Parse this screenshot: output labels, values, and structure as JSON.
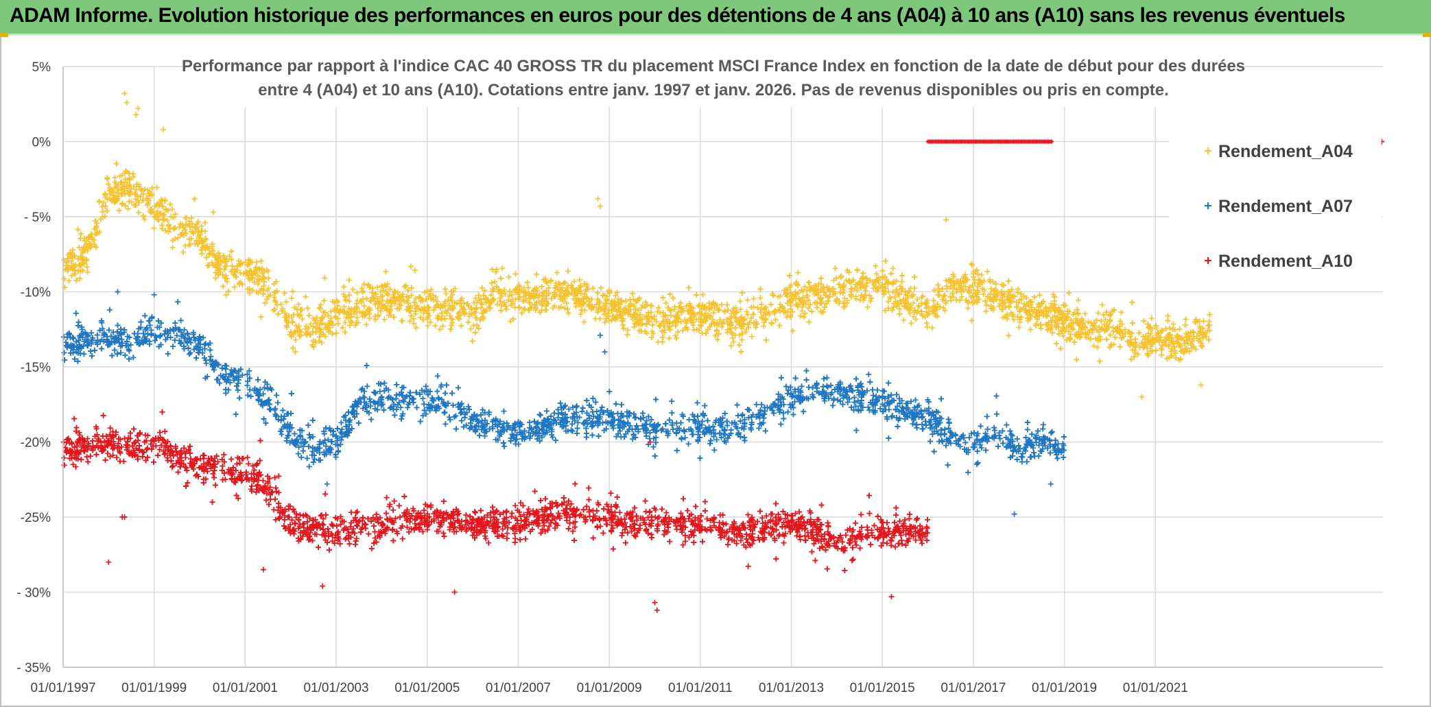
{
  "banner": {
    "title": "ADAM Informe. Evolution historique des performances en euros pour des détentions de 4 ans (A04) à 10 ans (A10) sans les revenus éventuels",
    "color": "#7ec87c"
  },
  "chart_data": {
    "type": "scatter",
    "title_lines": [
      "Performance par rapport à l'indice CAC 40 GROSS TR  du placement MSCI France Index en fonction de la date de début pour des durées",
      "entre 4 (A04) et 10 ans (A10). Cotations entre janv. 1997 et janv. 2026. Pas de revenus disponibles ou pris en compte."
    ],
    "xlabel": "",
    "ylabel": "",
    "x_range": [
      1997.0,
      2026.0
    ],
    "x_ticks": [
      {
        "year": 1997,
        "label": "01/01/1997"
      },
      {
        "year": 1999,
        "label": "01/01/1999"
      },
      {
        "year": 2001,
        "label": "01/01/2001"
      },
      {
        "year": 2003,
        "label": "01/01/2003"
      },
      {
        "year": 2005,
        "label": "01/01/2005"
      },
      {
        "year": 2007,
        "label": "01/01/2007"
      },
      {
        "year": 2009,
        "label": "01/01/2009"
      },
      {
        "year": 2011,
        "label": "01/01/2011"
      },
      {
        "year": 2013,
        "label": "01/01/2013"
      },
      {
        "year": 2015,
        "label": "01/01/2015"
      },
      {
        "year": 2017,
        "label": "01/01/2017"
      },
      {
        "year": 2019,
        "label": "01/01/2019"
      },
      {
        "year": 2021,
        "label": "01/01/2021"
      }
    ],
    "ylim": [
      -35,
      5
    ],
    "y_ticks": [
      {
        "value": 5,
        "label": "5%"
      },
      {
        "value": 0,
        "label": "0%"
      },
      {
        "value": -5,
        "label": "- 5%"
      },
      {
        "value": -10,
        "label": "-10%"
      },
      {
        "value": -15,
        "label": "-15%"
      },
      {
        "value": -20,
        "label": "-20%"
      },
      {
        "value": -25,
        "label": "-25%"
      },
      {
        "value": -30,
        "label": "- 30%"
      },
      {
        "value": -35,
        "label": "- 35%"
      }
    ],
    "grid": true,
    "legend_position": "top-right",
    "marker": "+",
    "series": [
      {
        "name": "Rendement_A04",
        "color": "#f5c332",
        "x_start": 1997.0,
        "x_end": 2022.2,
        "spread": 0.9,
        "profile": [
          [
            1997.0,
            -8.5
          ],
          [
            1997.5,
            -7.5
          ],
          [
            1998.0,
            -3.5
          ],
          [
            1998.5,
            -3.0
          ],
          [
            1999.0,
            -4.5
          ],
          [
            1999.5,
            -5.5
          ],
          [
            2000.0,
            -6.5
          ],
          [
            2000.5,
            -8.5
          ],
          [
            2001.0,
            -8.5
          ],
          [
            2001.5,
            -9.5
          ],
          [
            2002.0,
            -12.0
          ],
          [
            2002.5,
            -12.5
          ],
          [
            2003.0,
            -11.5
          ],
          [
            2003.5,
            -11.0
          ],
          [
            2004.0,
            -10.5
          ],
          [
            2005.0,
            -11.0
          ],
          [
            2006.0,
            -11.5
          ],
          [
            2006.5,
            -10.0
          ],
          [
            2007.0,
            -10.5
          ],
          [
            2008.0,
            -10.0
          ],
          [
            2009.0,
            -11.0
          ],
          [
            2010.0,
            -12.0
          ],
          [
            2011.0,
            -11.5
          ],
          [
            2012.0,
            -12.0
          ],
          [
            2013.0,
            -10.5
          ],
          [
            2014.0,
            -10.0
          ],
          [
            2015.0,
            -9.5
          ],
          [
            2015.5,
            -10.5
          ],
          [
            2016.0,
            -11.5
          ],
          [
            2016.5,
            -9.5
          ],
          [
            2017.0,
            -9.5
          ],
          [
            2017.5,
            -10.5
          ],
          [
            2018.0,
            -11.0
          ],
          [
            2018.5,
            -11.5
          ],
          [
            2019.0,
            -12.0
          ],
          [
            2019.5,
            -12.5
          ],
          [
            2020.0,
            -12.0
          ],
          [
            2020.5,
            -13.5
          ],
          [
            2021.0,
            -13.0
          ],
          [
            2021.5,
            -13.5
          ],
          [
            2022.2,
            -12.5
          ]
        ],
        "outliers": [
          [
            1998.35,
            3.2
          ],
          [
            1998.4,
            2.6
          ],
          [
            1998.6,
            1.8
          ],
          [
            1998.65,
            2.2
          ],
          [
            1999.2,
            0.8
          ],
          [
            2008.75,
            -3.8
          ],
          [
            2008.8,
            -4.3
          ],
          [
            2016.4,
            -5.2
          ],
          [
            2000.3,
            -4.7
          ],
          [
            2020.7,
            -17.0
          ],
          [
            2022.0,
            -16.2
          ]
        ]
      },
      {
        "name": "Rendement_A07",
        "color": "#1f77c4",
        "x_start": 1997.0,
        "x_end": 2019.0,
        "spread": 0.75,
        "profile": [
          [
            1997.0,
            -13.5
          ],
          [
            1998.0,
            -13.0
          ],
          [
            1998.5,
            -13.5
          ],
          [
            1999.0,
            -12.5
          ],
          [
            1999.5,
            -13.0
          ],
          [
            2000.0,
            -13.5
          ],
          [
            2000.5,
            -15.5
          ],
          [
            2001.0,
            -16.0
          ],
          [
            2001.5,
            -17.0
          ],
          [
            2002.0,
            -19.5
          ],
          [
            2002.5,
            -20.5
          ],
          [
            2003.0,
            -20.0
          ],
          [
            2003.5,
            -17.5
          ],
          [
            2004.0,
            -17.0
          ],
          [
            2004.5,
            -17.5
          ],
          [
            2005.0,
            -17.0
          ],
          [
            2006.0,
            -18.5
          ],
          [
            2007.0,
            -19.5
          ],
          [
            2008.0,
            -18.5
          ],
          [
            2009.0,
            -18.5
          ],
          [
            2010.0,
            -19.0
          ],
          [
            2011.0,
            -19.0
          ],
          [
            2012.0,
            -19.0
          ],
          [
            2013.0,
            -17.0
          ],
          [
            2014.0,
            -16.5
          ],
          [
            2015.0,
            -17.5
          ],
          [
            2016.0,
            -18.5
          ],
          [
            2016.5,
            -19.5
          ],
          [
            2017.0,
            -20.0
          ],
          [
            2017.5,
            -19.5
          ],
          [
            2018.0,
            -20.5
          ],
          [
            2018.5,
            -20.0
          ],
          [
            2019.0,
            -20.5
          ]
        ],
        "outliers": [
          [
            1998.2,
            -10.0
          ],
          [
            1999.0,
            -10.2
          ],
          [
            2002.8,
            -22.8
          ],
          [
            2008.8,
            -12.9
          ],
          [
            2008.9,
            -14.0
          ],
          [
            2017.9,
            -24.8
          ],
          [
            2018.7,
            -22.8
          ],
          [
            2014.7,
            -15.5
          ]
        ]
      },
      {
        "name": "Rendement_A10",
        "color": "#e8141c",
        "x_start": 1997.0,
        "x_end": 2016.0,
        "spread": 0.75,
        "profile": [
          [
            1997.0,
            -20.5
          ],
          [
            1998.0,
            -20.0
          ],
          [
            1998.5,
            -20.5
          ],
          [
            1999.0,
            -20.0
          ],
          [
            1999.5,
            -21.0
          ],
          [
            2000.0,
            -21.5
          ],
          [
            2001.0,
            -22.0
          ],
          [
            2001.5,
            -23.0
          ],
          [
            2002.0,
            -25.5
          ],
          [
            2003.0,
            -26.0
          ],
          [
            2004.0,
            -25.5
          ],
          [
            2005.0,
            -25.0
          ],
          [
            2006.0,
            -25.5
          ],
          [
            2007.0,
            -25.5
          ],
          [
            2008.0,
            -24.5
          ],
          [
            2009.0,
            -25.0
          ],
          [
            2010.0,
            -25.5
          ],
          [
            2011.0,
            -25.5
          ],
          [
            2012.0,
            -26.0
          ],
          [
            2013.0,
            -25.5
          ],
          [
            2014.0,
            -26.5
          ],
          [
            2015.0,
            -26.0
          ],
          [
            2016.0,
            -26.0
          ]
        ],
        "outliers": [
          [
            1998.0,
            -28.0
          ],
          [
            1998.3,
            -25.0
          ],
          [
            1998.35,
            -25.0
          ],
          [
            2002.7,
            -29.6
          ],
          [
            2005.6,
            -30.0
          ],
          [
            2010.0,
            -30.7
          ],
          [
            2010.05,
            -31.2
          ],
          [
            2015.2,
            -30.3
          ],
          [
            2001.4,
            -28.5
          ],
          [
            2009.9,
            -20.0
          ]
        ]
      }
    ],
    "zero_markers": {
      "color": "#e8141c",
      "x_start": 2016.0,
      "x_end": 2018.75,
      "extra_x": 2026.0,
      "value": 0
    }
  },
  "legend": {
    "items": [
      {
        "label": "Rendement_A04",
        "color": "#f5c332"
      },
      {
        "label": "Rendement_A07",
        "color": "#1f77c4"
      },
      {
        "label": "Rendement_A10",
        "color": "#e8141c"
      }
    ]
  }
}
